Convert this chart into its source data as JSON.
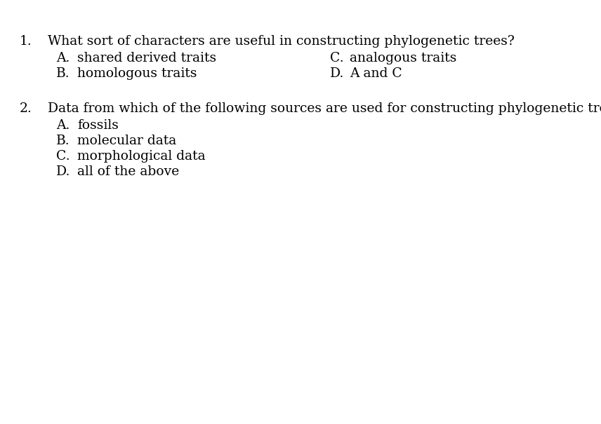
{
  "background_color": "#ffffff",
  "text_color": "#000000",
  "font_size": 13.5,
  "font_family": "serif",
  "questions": [
    {
      "number": "1.",
      "question": "What sort of characters are useful in constructing phylogenetic trees?",
      "choices_left": [
        [
          "A.",
          "shared derived traits"
        ],
        [
          "B.",
          "homologous traits"
        ]
      ],
      "choices_right": [
        [
          "C.",
          "analogous traits"
        ],
        [
          "D.",
          "A and C"
        ]
      ]
    },
    {
      "number": "2.",
      "question": "Data from which of the following sources are used for constructing phylogenetic trees?",
      "choices_left": [
        [
          "A.",
          "fossils"
        ],
        [
          "B.",
          "molecular data"
        ],
        [
          "C.",
          "morphological data"
        ],
        [
          "D.",
          "all of the above"
        ]
      ],
      "choices_right": []
    }
  ]
}
